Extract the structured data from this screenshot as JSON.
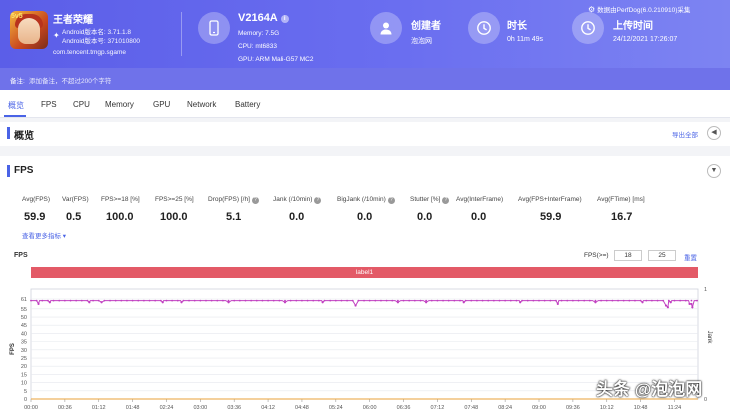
{
  "app": {
    "name": "王者荣耀",
    "icon_tag": "5v5",
    "version_label": "Android版本名: 3.71.1.8",
    "version_code": "Android版本号: 371010800",
    "package": "com.tencent.tmgp.sgame"
  },
  "device": {
    "name": "V2164A",
    "memory": "Memory: 7.5G",
    "cpu": "CPU: mt6833",
    "gpu": "GPU: ARM Mali-G57 MC2"
  },
  "creator": {
    "label": "创建者",
    "value": "泡泡网"
  },
  "duration": {
    "label": "时长",
    "value": "0h 11m 49s"
  },
  "upload": {
    "label": "上传时间",
    "value": "24/12/2021 17:26:07"
  },
  "source_note": "数据由PerfDog(6.0.210910)采集",
  "note": {
    "label": "备注:",
    "placeholder": "添加备注，不超过200个字符"
  },
  "tabs": [
    "概览",
    "FPS",
    "CPU",
    "Memory",
    "GPU",
    "Network",
    "Battery"
  ],
  "overview": {
    "title": "概览",
    "export": "导出全部"
  },
  "fps_section": {
    "title": "FPS",
    "more": "查看更多指标 ▾",
    "chart_label": "FPS",
    "threshold_label": "FPS(>=)",
    "threshold_1": "18",
    "threshold_2": "25",
    "reset": "重置",
    "band_label": "label1",
    "stats": [
      {
        "label": "Avg(FPS)",
        "value": "59.9"
      },
      {
        "label": "Var(FPS)",
        "value": "0.5"
      },
      {
        "label": "FPS>=18 [%]",
        "value": "100.0"
      },
      {
        "label": "FPS>=25 [%]",
        "value": "100.0"
      },
      {
        "label": "Drop(FPS) [/h]",
        "value": "5.1"
      },
      {
        "label": "Jank (/10min)",
        "value": "0.0"
      },
      {
        "label": "BigJank (/10min)",
        "value": "0.0"
      },
      {
        "label": "Stutter [%]",
        "value": "0.0"
      },
      {
        "label": "Avg(InterFrame)",
        "value": "0.0"
      },
      {
        "label": "Avg(FPS+InterFrame)",
        "value": "59.9"
      },
      {
        "label": "Avg(FTime) [ms]",
        "value": "16.7"
      }
    ]
  },
  "watermark": "头条 @泡泡网",
  "chart_data": {
    "type": "line",
    "title": "FPS",
    "xlabel": "",
    "ylabel": "FPS",
    "y2label": "Jank",
    "ylim": [
      0,
      61
    ],
    "y_ticks": [
      0,
      5,
      10,
      15,
      20,
      25,
      30,
      35,
      40,
      45,
      50,
      55,
      61
    ],
    "y2_ticks": [
      "1",
      "0"
    ],
    "x_ticks": [
      "00:00",
      "00:36",
      "01:12",
      "01:48",
      "02:24",
      "03:00",
      "03:36",
      "04:12",
      "04:48",
      "05:24",
      "06:00",
      "06:36",
      "07:12",
      "07:48",
      "08:24",
      "09:00",
      "09:36",
      "10:12",
      "10:48",
      "11:24"
    ],
    "duration_seconds": 709,
    "series": [
      {
        "name": "FPS",
        "color": "#c03fc0",
        "baseline": 60,
        "dips": [
          [
            8,
            58
          ],
          [
            20,
            59
          ],
          [
            62,
            59
          ],
          [
            75,
            59
          ],
          [
            140,
            59
          ],
          [
            160,
            59
          ],
          [
            210,
            59
          ],
          [
            270,
            59
          ],
          [
            310,
            59
          ],
          [
            345,
            57
          ],
          [
            390,
            59
          ],
          [
            420,
            59
          ],
          [
            460,
            59
          ],
          [
            520,
            59
          ],
          [
            560,
            58
          ],
          [
            600,
            59
          ],
          [
            650,
            59
          ],
          [
            675,
            57
          ],
          [
            677,
            56
          ],
          [
            680,
            59
          ],
          [
            700,
            58
          ],
          [
            702,
            58
          ],
          [
            703,
            56
          ]
        ]
      },
      {
        "name": "Jank",
        "color": "#e8a23a",
        "values": "0"
      }
    ]
  }
}
